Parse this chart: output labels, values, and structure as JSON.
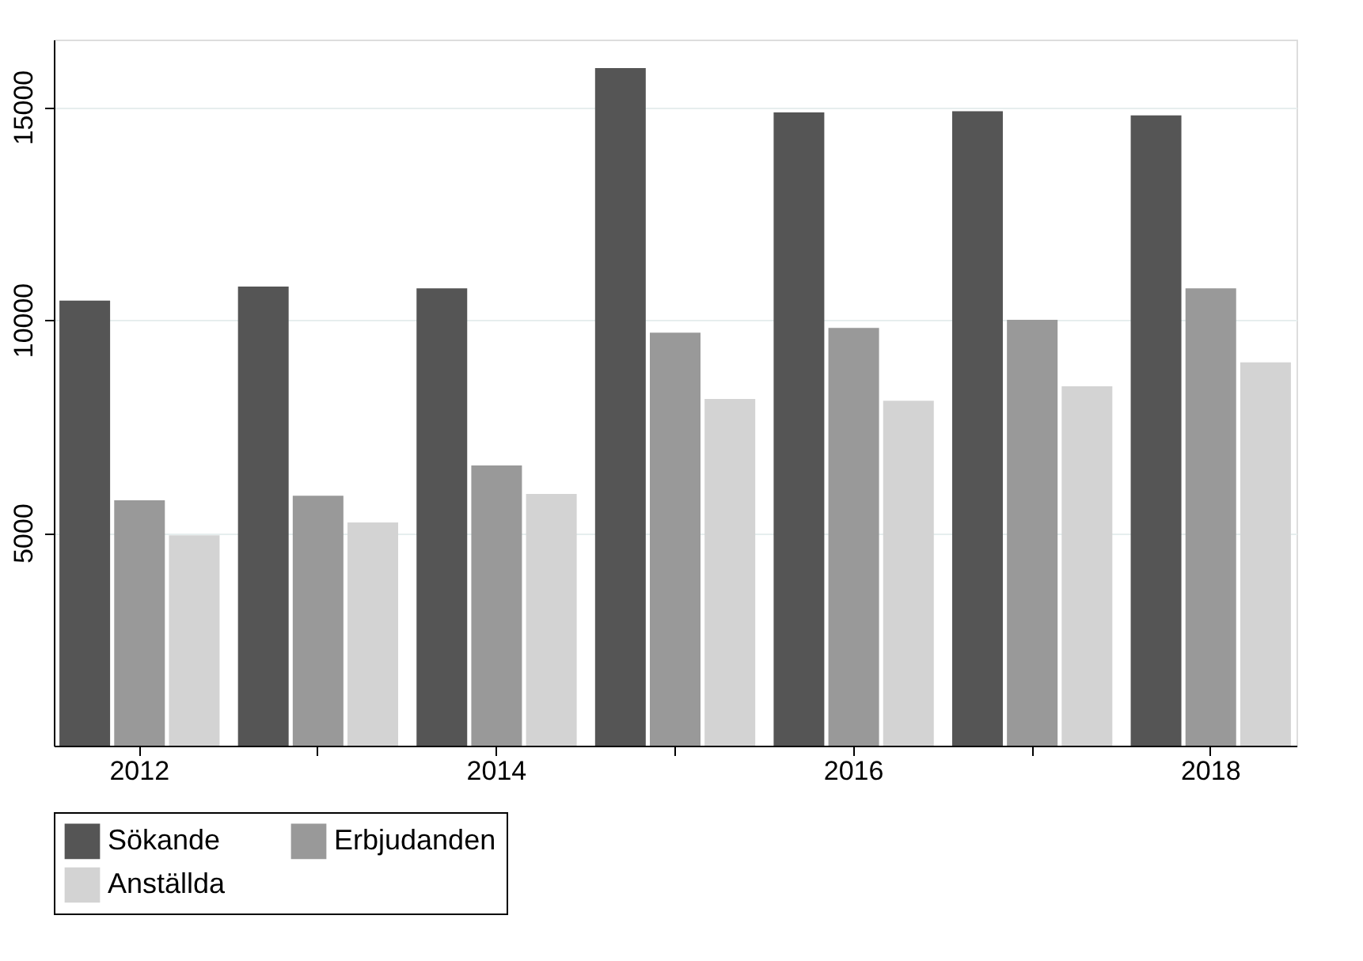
{
  "chart_data": {
    "type": "bar",
    "categories": [
      "2012",
      null,
      "2014",
      null,
      "2016",
      null,
      "2018"
    ],
    "series": [
      {
        "name": "Sökande",
        "color": "#555555",
        "values": [
          10450,
          10780,
          10740,
          15910,
          14870,
          14900,
          14800
        ]
      },
      {
        "name": "Erbjudanden",
        "color": "#999999",
        "values": [
          5760,
          5870,
          6580,
          9700,
          9810,
          10000,
          10740
        ]
      },
      {
        "name": "Anställda",
        "color": "#d3d3d3",
        "values": [
          4940,
          5240,
          5910,
          8140,
          8100,
          8440,
          9000
        ]
      }
    ],
    "ylim": [
      0,
      16580
    ],
    "yticks": [
      5000,
      10000,
      15000
    ],
    "grid": "y",
    "legend": "bottom"
  }
}
